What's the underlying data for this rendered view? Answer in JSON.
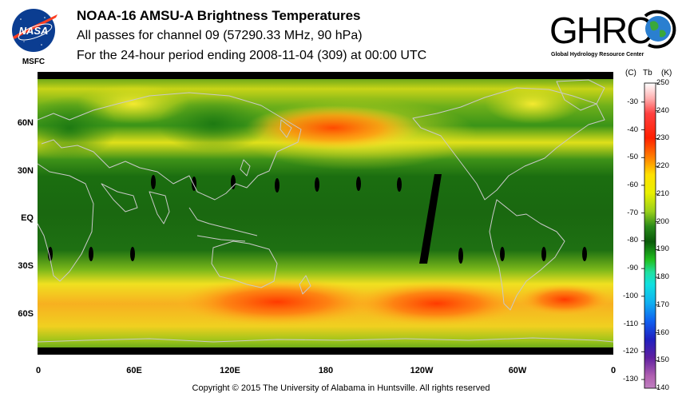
{
  "title": {
    "line1": "NOAA-16 AMSU-A Brightness Temperatures",
    "line2": "All passes for channel 09 (57290.33 MHz, 90 hPa)",
    "line3": "For the 24-hour period ending 2008-11-04 (309) at 00:00 UTC"
  },
  "logos": {
    "nasa_text": "NASA",
    "msfc_text": "MSFC",
    "ghrc_text": "GHRC",
    "ghrc_sub": "Global Hydrology Resource Center"
  },
  "map": {
    "lat_labels": [
      "60N",
      "30N",
      "EQ",
      "30S",
      "60S"
    ],
    "lon_labels": [
      "0",
      "60E",
      "120E",
      "180",
      "120W",
      "60W",
      "0"
    ],
    "lat_values": [
      60,
      30,
      0,
      -30,
      -60
    ],
    "lon_values": [
      0,
      60,
      120,
      180,
      240,
      300,
      360
    ],
    "lat_range": [
      -90,
      90
    ],
    "lon_range": [
      0,
      360
    ],
    "grid": false
  },
  "colorbar": {
    "header_left": "(C)",
    "header_tb": "Tb",
    "header_right": "(K)",
    "celsius_ticks": [
      "-30",
      "-40",
      "-50",
      "-60",
      "-70",
      "-80",
      "-90",
      "-100",
      "-110",
      "-120",
      "-130"
    ],
    "celsius_values": [
      -30,
      -40,
      -50,
      -60,
      -70,
      -80,
      -90,
      -100,
      -110,
      -120,
      -130
    ],
    "kelvin_ticks": [
      "250",
      "240",
      "230",
      "220",
      "210",
      "200",
      "190",
      "180",
      "170",
      "160",
      "150",
      "140"
    ],
    "kelvin_values": [
      250,
      240,
      230,
      220,
      210,
      200,
      190,
      180,
      170,
      160,
      150,
      140
    ],
    "kelvin_range": [
      140,
      250
    ]
  },
  "colors": {
    "low": "#a04aa0",
    "cold": "#0a5a0a",
    "mid": "#2f8a1a",
    "warm": "#e8e01a",
    "hot": "#ff3a00",
    "hottest": "#ffffff"
  },
  "copyright": "Copyright © 2015 The University of Alabama in Huntsville.  All rights reserved"
}
